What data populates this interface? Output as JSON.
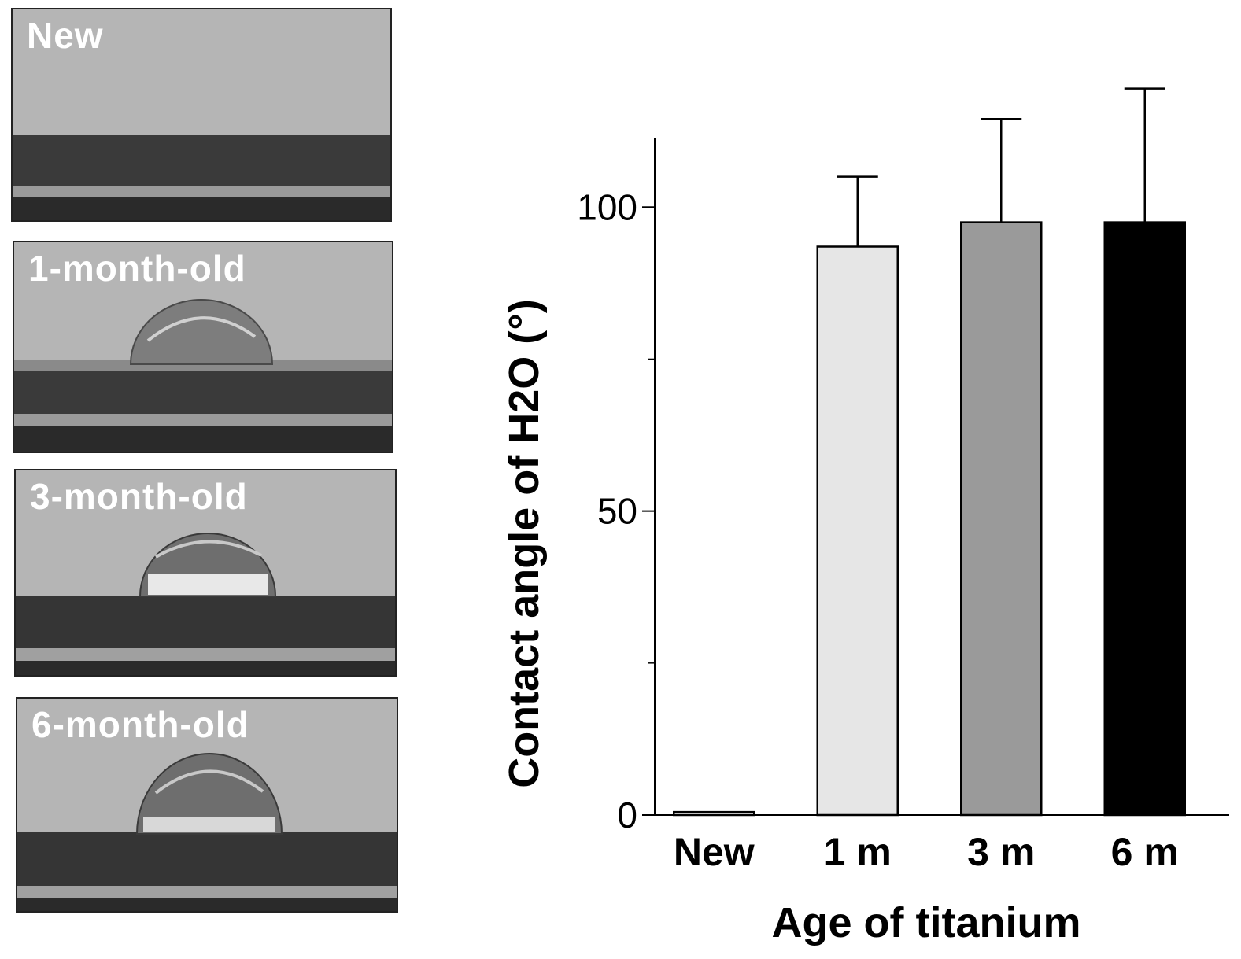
{
  "photos": [
    {
      "label": "New",
      "droplet": false
    },
    {
      "label": "1-month-old",
      "droplet": true
    },
    {
      "label": "3-month-old",
      "droplet": true
    },
    {
      "label": "6-month-old",
      "droplet": true
    }
  ],
  "chart_data": {
    "type": "bar",
    "categories": [
      "New",
      "1 m",
      "3 m",
      "6 m"
    ],
    "values": [
      0.5,
      93.5,
      97.5,
      97.5
    ],
    "errors": [
      0,
      11.5,
      17,
      22
    ],
    "bar_colors": [
      "#ffffff",
      "#e6e6e6",
      "#9a9a9a",
      "#000000"
    ],
    "xlabel": "Age of titanium",
    "ylabel": "Contact angle of H2O (°)",
    "ylim": [
      0,
      110
    ],
    "yticks_major": [
      0,
      50,
      100
    ],
    "yticks_minor": [
      25,
      75
    ],
    "grid": false
  }
}
